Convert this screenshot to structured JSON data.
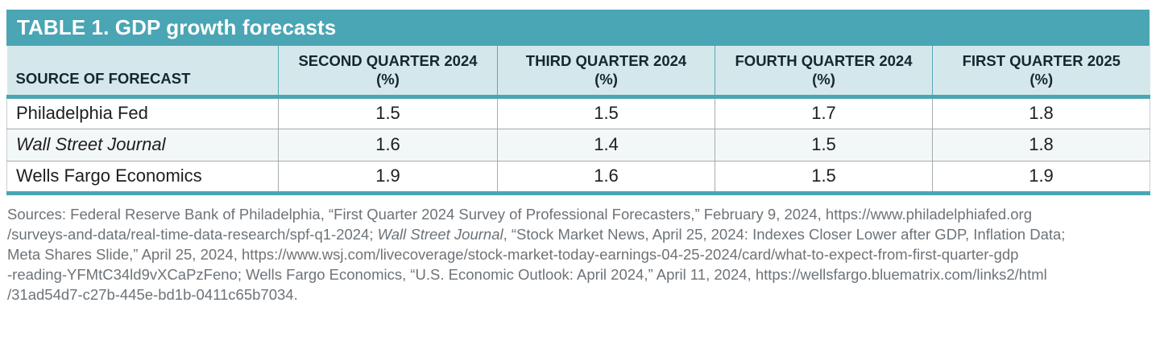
{
  "table": {
    "title": "TABLE 1. GDP growth forecasts",
    "columns": [
      {
        "label": "SOURCE OF FORECAST",
        "sub": ""
      },
      {
        "label": "SECOND QUARTER 2024",
        "sub": "(%)"
      },
      {
        "label": "THIRD QUARTER 2024",
        "sub": "(%)"
      },
      {
        "label": "FOURTH QUARTER 2024",
        "sub": "(%)"
      },
      {
        "label": "FIRST QUARTER 2025",
        "sub": "(%)"
      }
    ],
    "rows": [
      {
        "source": "Philadelphia Fed",
        "italic": false,
        "values": [
          "1.5",
          "1.5",
          "1.7",
          "1.8"
        ]
      },
      {
        "source": "Wall Street Journal",
        "italic": true,
        "values": [
          "1.6",
          "1.4",
          "1.5",
          "1.8"
        ]
      },
      {
        "source": "Wells Fargo Economics",
        "italic": false,
        "values": [
          "1.9",
          "1.6",
          "1.5",
          "1.9"
        ]
      }
    ]
  },
  "colors": {
    "teal_accent": "#4AA5B4",
    "header_bg": "#D4E8EB",
    "alt_row_bg": "#F2F7F8",
    "source_text": "#6D7378"
  },
  "sources": {
    "lines": [
      [
        {
          "t": "Sources: Federal Reserve Bank of Philadelphia, “First Quarter 2024 Survey of Professional Forecasters,” February 9, 2024, https://www.philadelphiafed.org",
          "i": false
        }
      ],
      [
        {
          "t": "/surveys-and-data/real-time-data-research/spf-q1-2024; ",
          "i": false
        },
        {
          "t": "Wall Street Journal",
          "i": true
        },
        {
          "t": ", “Stock Market News, April 25, 2024: Indexes Closer Lower after GDP, Inflation Data;",
          "i": false
        }
      ],
      [
        {
          "t": "Meta Shares Slide,” April 25, 2024, https://www.wsj.com/livecoverage/stock-market-today-earnings-04-25-2024/card/what-to-expect-from-first-quarter-gdp",
          "i": false
        }
      ],
      [
        {
          "t": "-reading-YFMtC34ld9vXCaPzFeno; Wells Fargo Economics, “U.S. Economic Outlook: April 2024,” April 11, 2024, https://wellsfargo.bluematrix.com/links2/html",
          "i": false
        }
      ],
      [
        {
          "t": "/31ad54d7-c27b-445e-bd1b-0411c65b7034.",
          "i": false
        }
      ]
    ]
  }
}
